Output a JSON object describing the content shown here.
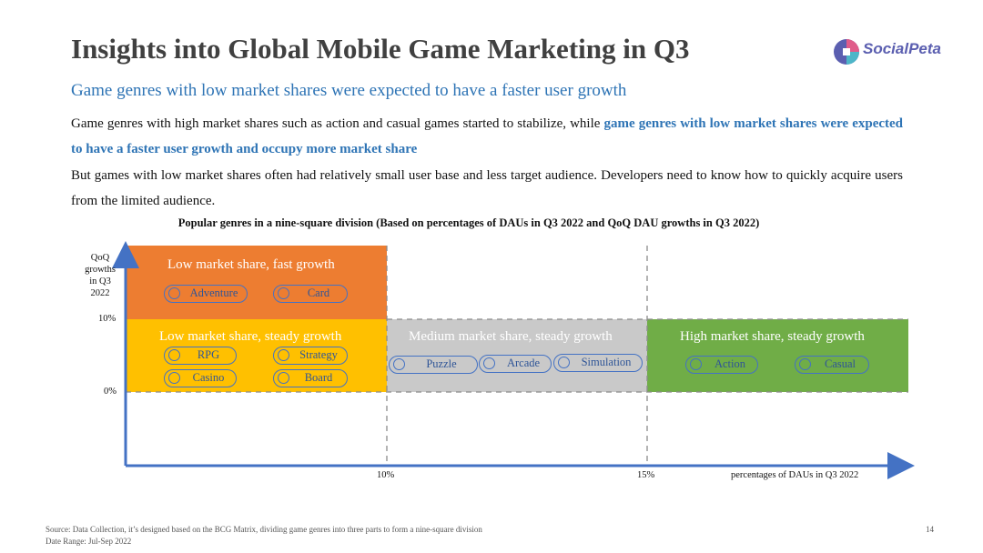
{
  "header": {
    "title": "Insights into Global Mobile Game Marketing in Q3",
    "logo_text": "SocialPeta",
    "subtitle": "Game genres with low market shares were expected to have a faster user growth"
  },
  "body": {
    "p1_plain": "Game genres with high market shares such as action and casual games started to stabilize, while ",
    "p1_highlight": "game genres with low market shares were expected to have a faster user growth and occupy more market share",
    "p2": "But games with low market shares often had relatively small user base and less target audience. Developers need to know how to quickly acquire users from the limited audience."
  },
  "diagram": {
    "title": "Popular genres in a nine-square division (Based on percentages of DAUs in Q3 2022 and QoQ DAU growths in Q3 2022)",
    "y_axis_label": [
      "QoQ",
      "growths",
      "in Q3",
      "2022"
    ],
    "y_ticks": [
      "10%",
      "0%"
    ],
    "x_ticks": [
      "10%",
      "15%"
    ],
    "x_axis_label": "percentages of DAUs in Q3 2022",
    "zones": [
      {
        "label": "Low market share, fast growth",
        "color": "#ed7d31",
        "genres": [
          "Adventure",
          "Card"
        ]
      },
      {
        "label": "Low market share, steady growth",
        "color": "#ffc000",
        "genres": [
          "RPG",
          "Strategy",
          "Casino",
          "Board"
        ]
      },
      {
        "label": "Medium market share, steady growth",
        "color": "#c9c9c9",
        "genres": [
          "Puzzle",
          "Arcade",
          "Simulation"
        ]
      },
      {
        "label": "High market share, steady growth",
        "color": "#70ad47",
        "genres": [
          "Action",
          "Casual"
        ]
      }
    ]
  },
  "footer": {
    "source": "Source: Data Collection, it’s designed based on the BCG Matrix, dividing game genres into three parts to form a nine-square division",
    "date": "Date Range: Jul-Sep 2022",
    "page": "14"
  },
  "colors": {
    "accent": "#2e74b5",
    "axis": "#4472c4",
    "title": "#404040"
  }
}
